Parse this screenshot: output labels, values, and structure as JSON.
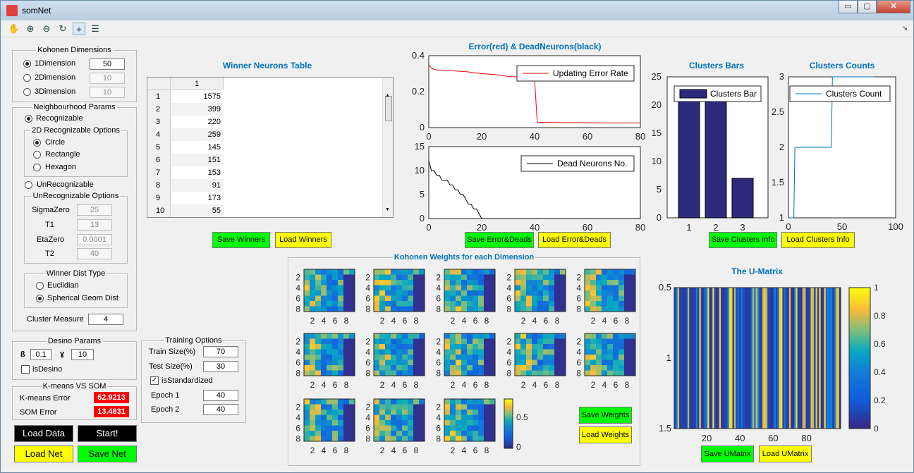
{
  "window": {
    "title": "somNet",
    "minimize": "▭",
    "maximize": "▢",
    "close": "✕"
  },
  "toolbar": {
    "tools": [
      "pan-hand-icon",
      "zoom-in-icon",
      "zoom-out-icon",
      "rotate-icon",
      "data-cursor-icon",
      "legend-icon"
    ]
  },
  "kohonen_dims": {
    "title": "Kohonen Dimensions",
    "options": [
      {
        "label": "1Dimension",
        "value": "50",
        "selected": true
      },
      {
        "label": "2Dimension",
        "value": "10",
        "selected": false
      },
      {
        "label": "3Dimension",
        "value": "10",
        "selected": false
      }
    ]
  },
  "neighbourhood": {
    "title": "Neighbourhood Params",
    "recognizable": "Recognizable",
    "options_title": "2D Recognizable Options",
    "circle": "Circle",
    "rectangle": "Rectangle",
    "hexagon": "Hexagon",
    "unrecognizable": "UnRecognizable",
    "unrec_title": "UnRecognizable Options",
    "sigma_label": "SigmaZero",
    "sigma_value": "25",
    "t1_label": "T1",
    "t1_value": "13",
    "eta_label": "EtaZero",
    "eta_value": "0.0001",
    "t2_label": "T2",
    "t2_value": "40",
    "dist_title": "Winner Dist Type",
    "euclidian": "Euclidian",
    "spherical": "Spherical Geom Dist",
    "cluster_label": "Cluster Measure",
    "cluster_value": "4"
  },
  "desino": {
    "title": "Desino Params",
    "beta_label": "ß",
    "beta_value": "0.1",
    "gamma_label": "ɣ",
    "gamma_value": "10",
    "isdesino": "isDesino"
  },
  "kmeans": {
    "title": "K-means VS SOM",
    "kmeans_label": "K-means Error",
    "kmeans_value": "62.9213",
    "som_label": "SOM Error",
    "som_value": "13.4831"
  },
  "buttons": {
    "load_data": "Load Data",
    "start": "Start!",
    "load_net": "Load Net",
    "save_net": "Save Net",
    "save_winners": "Save Winners",
    "load_winners": "Load Winners",
    "save_error": "Save Error&Deads",
    "load_error": "Load Error&Deads",
    "save_clusters": "Save Clusters Info",
    "load_clusters": "Load Clusters Info",
    "save_weights": "Save Weights",
    "load_weights": "Load Weights",
    "save_umatrix": "Save UMatrix",
    "load_umatrix": "Load UMatrix"
  },
  "training": {
    "title": "Training Options",
    "train_label": "Train Size(%)",
    "train_value": "70",
    "test_label": "Test Size(%)",
    "test_value": "30",
    "standardized": "isStandardized",
    "epoch1_label": "Epoch 1",
    "epoch1_value": "40",
    "epoch2_label": "Epoch 2",
    "epoch2_value": "40"
  },
  "winners": {
    "title": "Winner Neurons Table",
    "col_header": "1",
    "rows": [
      {
        "idx": "1",
        "val": "1575"
      },
      {
        "idx": "2",
        "val": "399"
      },
      {
        "idx": "3",
        "val": "220"
      },
      {
        "idx": "4",
        "val": "259"
      },
      {
        "idx": "5",
        "val": "145"
      },
      {
        "idx": "6",
        "val": "151"
      },
      {
        "idx": "7",
        "val": "153"
      },
      {
        "idx": "8",
        "val": "91"
      },
      {
        "idx": "9",
        "val": "173"
      },
      {
        "idx": "10",
        "val": "55"
      }
    ]
  },
  "weights_panel": {
    "title": "Kohonen Weights for each Dimension",
    "cbar_ticks": [
      "0.5",
      "0"
    ]
  },
  "umatrix": {
    "title": "The U-Matrix"
  },
  "chart_data": [
    {
      "type": "line",
      "title": "Error(red) & DeadNeurons(black)",
      "legend": "Updating Error Rate",
      "color": "#ff0000",
      "x": [
        0,
        1,
        3,
        5,
        10,
        15,
        20,
        25,
        30,
        35,
        38,
        40,
        41,
        50,
        60,
        70,
        80
      ],
      "y": [
        0.35,
        0.33,
        0.32,
        0.32,
        0.315,
        0.31,
        0.3,
        0.295,
        0.285,
        0.28,
        0.275,
        0.27,
        0.03,
        0.028,
        0.027,
        0.026,
        0.026
      ],
      "xlim": [
        0,
        80
      ],
      "ylim": [
        0,
        0.4
      ],
      "xticks": [
        "0",
        "20",
        "40",
        "60",
        "80"
      ],
      "yticks": [
        "0.4",
        "0.2",
        "0"
      ]
    },
    {
      "type": "line",
      "legend": "Dead Neurons No.",
      "color": "#000000",
      "x": [
        0,
        1,
        2,
        3,
        4,
        5,
        6,
        7,
        8,
        9,
        10,
        11,
        12,
        13,
        14,
        15,
        16,
        17,
        18,
        19,
        20,
        80
      ],
      "y": [
        12,
        10,
        10,
        9,
        9,
        8,
        8,
        8,
        7,
        7,
        6,
        6,
        5,
        5,
        4,
        3,
        3,
        2,
        2,
        1,
        0,
        0
      ],
      "xlim": [
        0,
        80
      ],
      "ylim": [
        0,
        15
      ],
      "xticks": [
        "0",
        "20",
        "40",
        "60",
        "80"
      ],
      "yticks": [
        "15",
        "10",
        "5",
        "0"
      ]
    },
    {
      "type": "bar",
      "title": "Clusters Bars",
      "legend": "Clusters Bar",
      "color": "#2d2a7e",
      "categories": [
        "1",
        "2",
        "3"
      ],
      "values": [
        21,
        21,
        7
      ],
      "ylim": [
        0,
        25
      ],
      "yticks": [
        "25",
        "20",
        "15",
        "10",
        "5",
        "0"
      ]
    },
    {
      "type": "line",
      "title": "Clusters Counts",
      "legend": "Clusters Count",
      "color": "#0072bd",
      "x": [
        0,
        5,
        6,
        40,
        41,
        80
      ],
      "y": [
        1,
        1,
        2,
        2,
        3,
        3
      ],
      "xlim": [
        0,
        100
      ],
      "ylim": [
        1,
        3
      ],
      "xticks": [
        "0",
        "50",
        "100"
      ],
      "yticks": [
        "3",
        "2.5",
        "2",
        "1.5",
        "1"
      ]
    },
    {
      "type": "heatmap",
      "title": "The U-Matrix",
      "xticks": [
        "20",
        "40",
        "60",
        "80"
      ],
      "yticks": [
        "0.5",
        "1",
        "1.5"
      ],
      "cbar_ticks": [
        "1",
        "0.8",
        "0.6",
        "0.4",
        "0.2",
        "0"
      ]
    }
  ]
}
